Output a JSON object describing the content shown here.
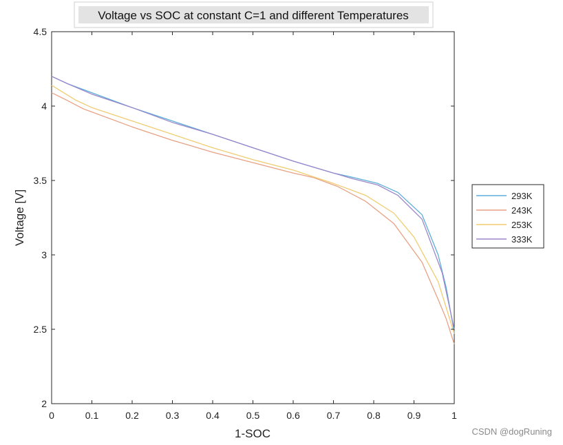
{
  "chart_data": {
    "type": "line",
    "title": "Voltage vs SOC at constant C=1 and different Temperatures",
    "xlabel": "1-SOC",
    "ylabel": "Voltage [V]",
    "xlim": [
      0,
      1
    ],
    "ylim": [
      2,
      4.5
    ],
    "xticks": [
      0,
      0.1,
      0.2,
      0.3,
      0.4,
      0.5,
      0.6,
      0.7,
      0.8,
      0.9,
      1
    ],
    "xtick_labels": [
      "0",
      "0.1",
      "0.2",
      "0.3",
      "0.4",
      "0.5",
      "0.6",
      "0.7",
      "0.8",
      "0.9",
      "1"
    ],
    "yticks": [
      2,
      2.5,
      3,
      3.5,
      4,
      4.5
    ],
    "ytick_labels": [
      "2",
      "2.5",
      "3",
      "3.5",
      "4",
      "4.5"
    ],
    "legend_position": "outside-right",
    "grid": false,
    "series": [
      {
        "name": "293K",
        "color": "#5aaed8",
        "x": [
          0,
          0.04,
          0.1,
          0.2,
          0.3,
          0.4,
          0.5,
          0.6,
          0.7,
          0.75,
          0.81,
          0.86,
          0.92,
          0.96,
          0.98,
          1.0
        ],
        "y": [
          4.2,
          4.15,
          4.09,
          3.99,
          3.9,
          3.81,
          3.72,
          3.63,
          3.55,
          3.52,
          3.48,
          3.42,
          3.27,
          3.0,
          2.78,
          2.48
        ]
      },
      {
        "name": "243K",
        "color": "#e8a083",
        "x": [
          0,
          0.03,
          0.08,
          0.2,
          0.3,
          0.4,
          0.5,
          0.6,
          0.65,
          0.71,
          0.78,
          0.85,
          0.92,
          0.96,
          0.98,
          1.0
        ],
        "y": [
          4.09,
          4.05,
          3.98,
          3.86,
          3.77,
          3.69,
          3.62,
          3.55,
          3.52,
          3.46,
          3.36,
          3.21,
          2.95,
          2.7,
          2.57,
          2.4
        ]
      },
      {
        "name": "253K",
        "color": "#f0cc70",
        "x": [
          0,
          0.03,
          0.06,
          0.1,
          0.2,
          0.3,
          0.4,
          0.5,
          0.6,
          0.7,
          0.78,
          0.85,
          0.9,
          0.96,
          1.0
        ],
        "y": [
          4.14,
          4.09,
          4.04,
          3.99,
          3.9,
          3.81,
          3.72,
          3.64,
          3.57,
          3.48,
          3.4,
          3.28,
          3.12,
          2.82,
          2.47
        ]
      },
      {
        "name": "333K",
        "color": "#9b86cb",
        "x": [
          0,
          0.04,
          0.1,
          0.2,
          0.3,
          0.4,
          0.5,
          0.6,
          0.7,
          0.75,
          0.81,
          0.86,
          0.92,
          0.97,
          1.0
        ],
        "y": [
          4.2,
          4.15,
          4.08,
          3.99,
          3.89,
          3.81,
          3.72,
          3.63,
          3.55,
          3.51,
          3.47,
          3.4,
          3.24,
          2.88,
          2.5
        ]
      }
    ]
  },
  "watermark": "CSDN @dogRuning"
}
